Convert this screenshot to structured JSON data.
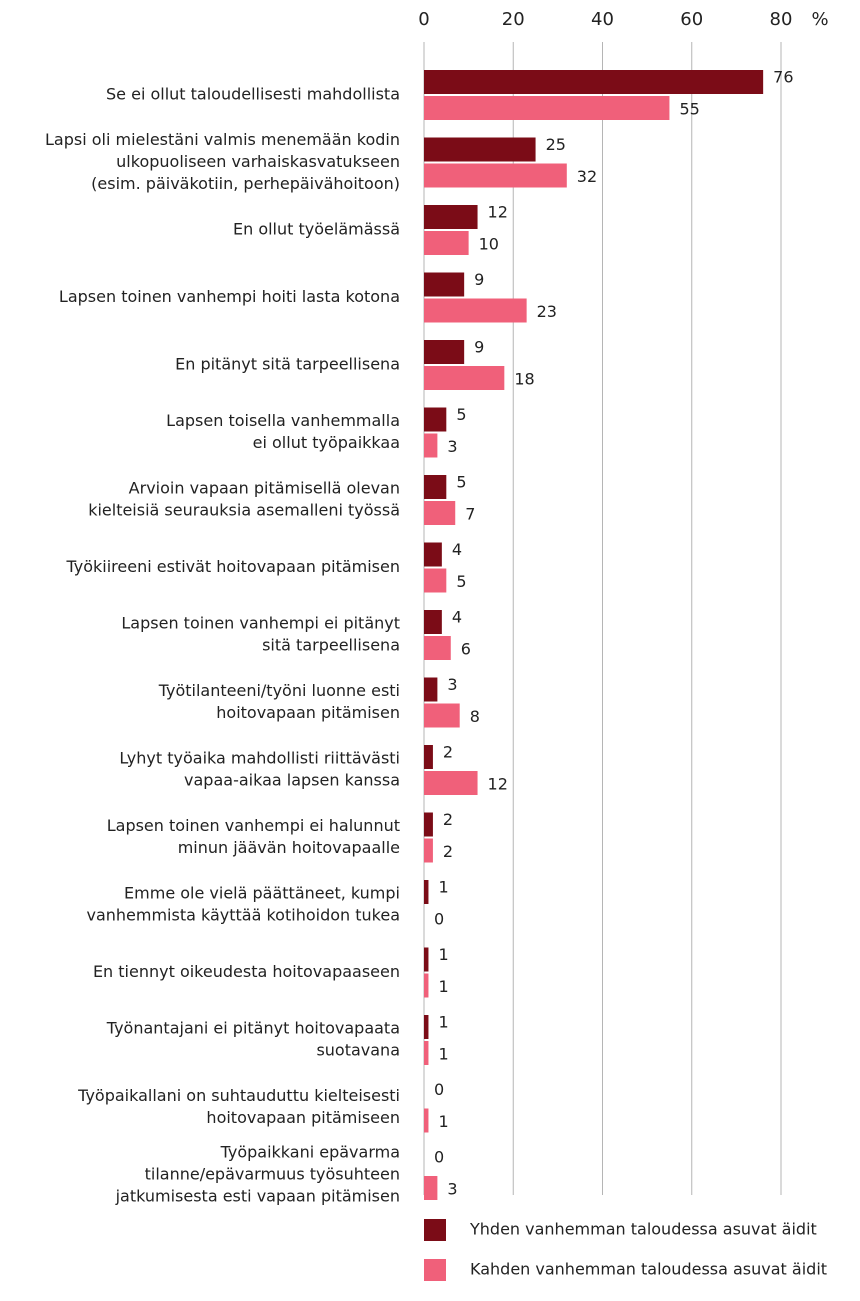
{
  "chart_data": {
    "type": "hbar",
    "categories": [
      [
        "Se ei ollut taloudellisesti mahdollista"
      ],
      [
        "Lapsi oli mielestäni valmis menemään kodin",
        "ulkopuoliseen varhaiskasvatukseen",
        "(esim.  päiväkotiin, perhepäivähoitoon)"
      ],
      [
        "En ollut työelämässä"
      ],
      [
        "Lapsen toinen vanhempi hoiti lasta kotona"
      ],
      [
        "En pitänyt sitä tarpeellisena"
      ],
      [
        "Lapsen toisella vanhemmalla",
        "ei ollut työpaikkaa"
      ],
      [
        "Arvioin vapaan pitämisellä olevan",
        "kielteisiä seurauksia asemalleni työssä"
      ],
      [
        "Työkiireeni estivät hoitovapaan pitämisen"
      ],
      [
        "Lapsen toinen vanhempi ei pitänyt",
        "sitä tarpeellisena"
      ],
      [
        "Työtilanteeni/työni luonne esti",
        "hoitovapaan pitämisen"
      ],
      [
        "Lyhyt työaika mahdollisti riittävästi",
        "vapaa-aikaa lapsen kanssa"
      ],
      [
        "Lapsen toinen vanhempi ei halunnut",
        "minun jäävän hoitovapaalle"
      ],
      [
        "Emme ole vielä päättäneet, kumpi",
        "vanhemmista käyttää kotihoidon tukea"
      ],
      [
        "En tiennyt oikeudesta hoitovapaaseen"
      ],
      [
        "Työnantajani ei pitänyt hoitovapaata",
        "suotavana"
      ],
      [
        "Työpaikallani on suhtauduttu kielteisesti",
        "hoitovapaan pitämiseen"
      ],
      [
        "Työpaikkani epävarma",
        "tilanne/epävarmuus työsuhteen",
        "jatkumisesta esti vapaan pitämisen"
      ]
    ],
    "series": [
      {
        "name": "Yhden vanhemman taloudessa asuvat äidit",
        "color": "#7b0c17",
        "values": [
          76,
          25,
          12,
          9,
          9,
          5,
          5,
          4,
          4,
          3,
          2,
          2,
          1,
          1,
          1,
          0,
          0
        ]
      },
      {
        "name": "Kahden vanhemman taloudessa asuvat äidit",
        "color": "#f0607a",
        "values": [
          55,
          32,
          10,
          23,
          18,
          3,
          7,
          5,
          6,
          8,
          12,
          2,
          0,
          1,
          1,
          1,
          3
        ]
      }
    ],
    "xlim": [
      0,
      80
    ],
    "xticks": [
      0,
      20,
      40,
      60,
      80
    ],
    "xunit": "%",
    "grid": true,
    "legend": "bottom"
  }
}
